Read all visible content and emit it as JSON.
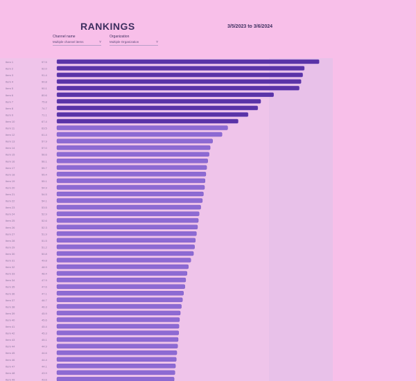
{
  "header": {
    "title": "RANKINGS",
    "date_range": "3/5/2023  to  3/6/2024"
  },
  "filters": [
    {
      "label": "Channel name",
      "value": "Multiple channel items"
    },
    {
      "label": "Organization",
      "value": "Multiple Organization"
    }
  ],
  "chart_data": {
    "type": "bar",
    "orientation": "horizontal",
    "title": "RANKINGS",
    "categories": [
      "Item 1",
      "Item 2",
      "Item 3",
      "Item 4",
      "Item 5",
      "Item 6",
      "Item 7",
      "Item 8",
      "Item 9",
      "Item 10",
      "Item 11",
      "Item 12",
      "Item 13",
      "Item 14",
      "Item 15",
      "Item 16",
      "Item 17",
      "Item 18",
      "Item 19",
      "Item 20",
      "Item 21",
      "Item 22",
      "Item 23",
      "Item 24",
      "Item 25",
      "Item 26",
      "Item 27",
      "Item 28",
      "Item 29",
      "Item 30",
      "Item 31",
      "Item 32",
      "Item 33",
      "Item 34",
      "Item 35",
      "Item 36",
      "Item 37",
      "Item 38",
      "Item 39",
      "Item 40",
      "Item 41",
      "Item 42",
      "Item 43",
      "Item 44",
      "Item 45",
      "Item 46",
      "Item 47",
      "Item 48",
      "Item 49",
      "Item 50"
    ],
    "values": [
      97.5,
      92.0,
      91.4,
      90.8,
      90.1,
      80.6,
      75.8,
      74.7,
      71.1,
      67.4,
      63.5,
      61.4,
      57.9,
      57.0,
      56.6,
      56.1,
      55.7,
      55.4,
      55.1,
      54.9,
      54.5,
      54.1,
      53.5,
      52.9,
      52.6,
      52.3,
      51.9,
      51.5,
      51.2,
      50.8,
      49.8,
      48.9,
      48.4,
      47.9,
      47.6,
      47.1,
      46.7,
      46.3,
      45.9,
      45.6,
      45.4,
      45.3,
      45.1,
      44.9,
      44.6,
      44.4,
      44.1,
      43.9,
      43.6,
      43.1
    ],
    "value_labels": [
      "97.5",
      "92.0",
      "91.4",
      "90.8",
      "90.1",
      "80.6",
      "75.8",
      "74.7",
      "71.1",
      "67.4",
      "63.5",
      "61.4",
      "57.9",
      "57.0",
      "56.6",
      "56.1",
      "55.7",
      "55.4",
      "55.1",
      "54.9",
      "54.5",
      "54.1",
      "53.5",
      "52.9",
      "52.6",
      "52.3",
      "51.9",
      "51.5",
      "51.2",
      "50.8",
      "49.8",
      "48.9",
      "48.4",
      "47.9",
      "47.6",
      "47.1",
      "46.7",
      "46.3",
      "45.9",
      "45.6",
      "45.4",
      "45.3",
      "45.1",
      "44.9",
      "44.6",
      "44.4",
      "44.1",
      "43.9",
      "43.6",
      "43.1"
    ],
    "xlim": [
      0,
      100
    ],
    "grid": false,
    "legend": "none",
    "colors": {
      "top_bars": "#5a33a7",
      "other_bars": "#8d6ad3",
      "bar_edge": "#6f4dc0",
      "label_text": "#8b769d"
    }
  }
}
